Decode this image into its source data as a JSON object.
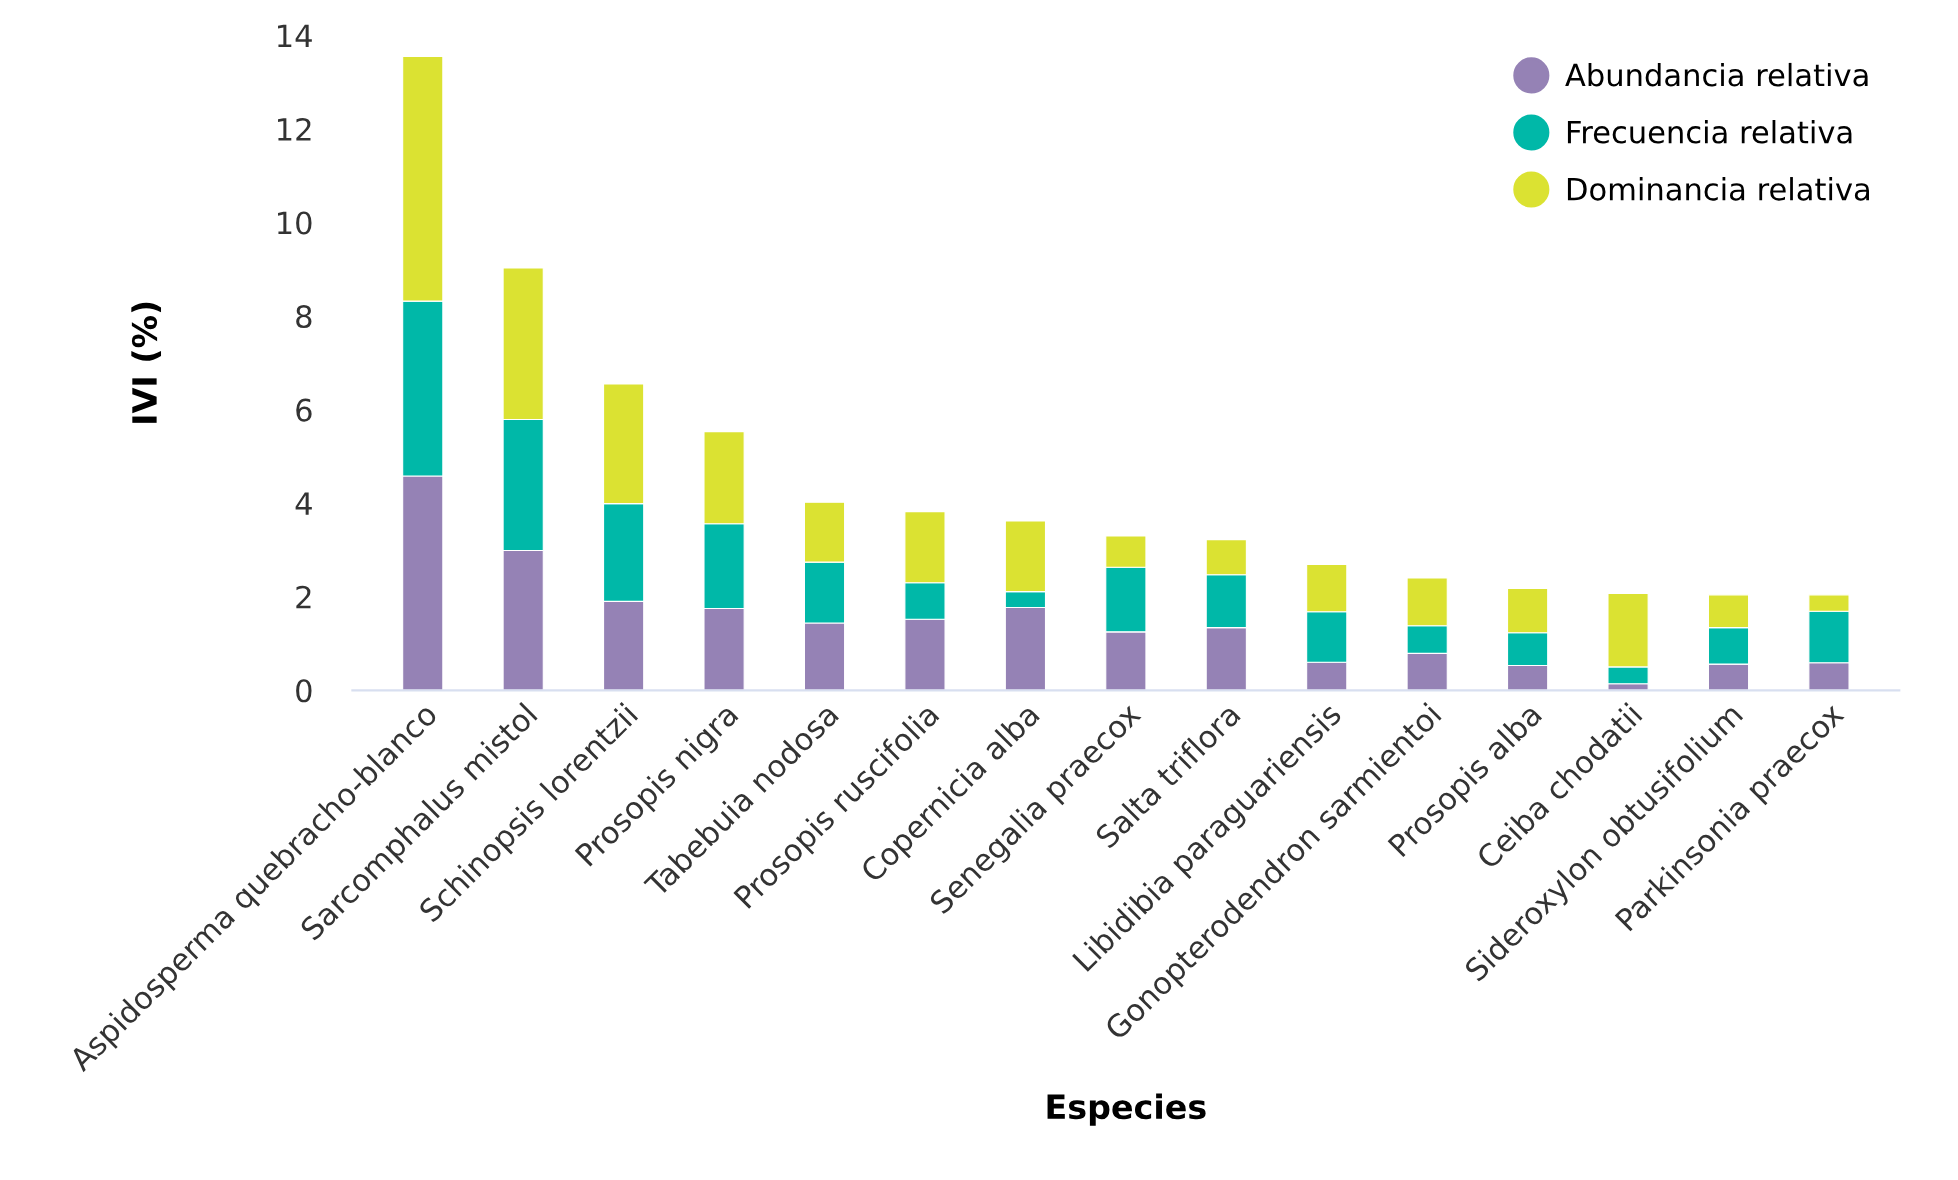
{
  "chart_data": {
    "type": "bar",
    "stacked": true,
    "xlabel": "Especies",
    "ylabel": "IVI (%)",
    "categories": [
      "Aspidosperma quebracho-blanco",
      "Sarcomphalus mistol",
      "Schinopsis lorentzii",
      "Prosopis nigra",
      "Tabebuia nodosa",
      "Prosopis ruscifolia",
      "Copernicia alba",
      "Senegalia praecox",
      "Salta triflora",
      "Libidibia paraguariensis",
      "Gonopterodendron sarmientoi",
      "Prosopis alba",
      "Ceiba chodatii",
      "Sideroxylon obtusifolium",
      "Parkinsonia praecox"
    ],
    "series": [
      {
        "name": "Abundancia relativa",
        "color": "#9582b5",
        "values": [
          4.58,
          2.99,
          1.9,
          1.75,
          1.44,
          1.52,
          1.77,
          1.25,
          1.34,
          0.6,
          0.79,
          0.53,
          0.14,
          0.56,
          0.59
        ]
      },
      {
        "name": "Frecuencia relativa",
        "color": "#00b8a8",
        "values": [
          3.74,
          2.8,
          2.09,
          1.81,
          1.3,
          0.78,
          0.34,
          1.38,
          1.13,
          1.08,
          0.59,
          0.7,
          0.36,
          0.78,
          1.1
        ]
      },
      {
        "name": "Dominancia relativa",
        "color": "#dbe232",
        "values": [
          5.23,
          3.24,
          2.56,
          1.97,
          1.28,
          1.52,
          1.51,
          0.67,
          0.75,
          1.01,
          1.02,
          0.95,
          1.57,
          0.7,
          0.35
        ]
      }
    ],
    "ylim": [
      0,
      14
    ],
    "yticks": [
      0,
      2,
      4,
      6,
      8,
      10,
      12,
      14
    ],
    "grid": false,
    "legend": "top right",
    "marker": "circle"
  }
}
